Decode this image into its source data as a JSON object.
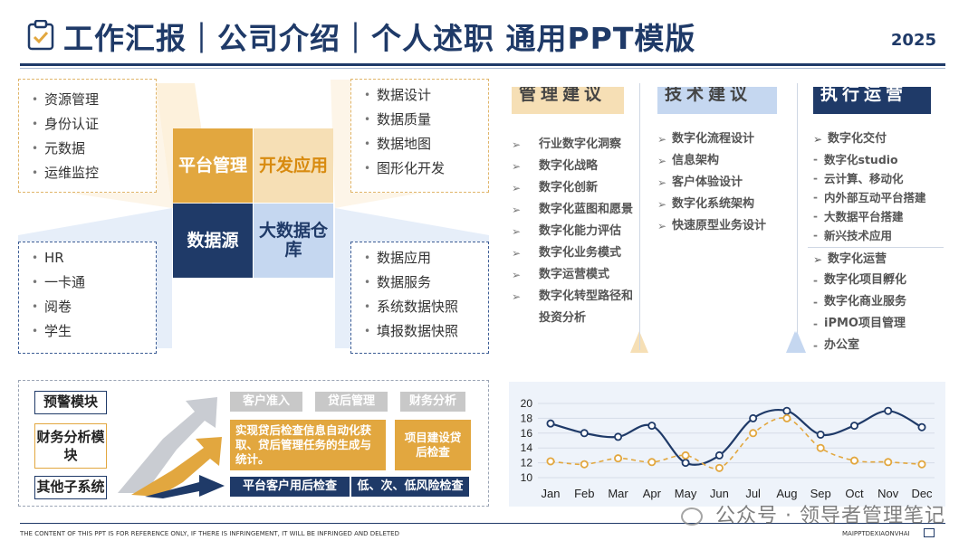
{
  "header": {
    "title": "工作汇报｜公司介绍｜个人述职 通用PPT模版",
    "year": "2025"
  },
  "left_diagram": {
    "top_left_list": [
      "资源管理",
      "身份认证",
      "元数据",
      "运维监控"
    ],
    "top_right_list": [
      "数据设计",
      "数据质量",
      "数据地图",
      "图形化开发"
    ],
    "bottom_left_list": [
      "HR",
      "一卡通",
      "阅卷",
      "学生"
    ],
    "bottom_right_list": [
      "数据应用",
      "数据服务",
      "系统数据快照",
      "填报数据快照"
    ],
    "quad_1": "平台管理",
    "quad_2": "开发应用",
    "quad_3": "数据源",
    "quad_4": "大数据仓库"
  },
  "right_columns": {
    "col1": {
      "title": "管理建议",
      "items": [
        "行业数字化洞察",
        "数字化战略",
        "数字化创新",
        "数字化蓝图和愿景",
        "数字化能力评估",
        "数字化业务模式",
        "数字运营模式",
        "数字化转型路径和投资分析"
      ]
    },
    "col2": {
      "title": "技术建议",
      "items": [
        "数字化流程设计",
        "信息架构",
        "客户体验设计",
        "数字化系统架构",
        "快速原型业务设计"
      ]
    },
    "col3": {
      "title": "执行运营",
      "group1_head": "数字化交付",
      "group1_items": [
        "数字化studio",
        "云计算、移动化",
        "内外部互动平台搭建",
        "大数据平台搭建",
        "新兴技术应用"
      ],
      "group2_head": "数字化运营",
      "group2_items": [
        "数字化项目孵化",
        "数字化商业服务",
        "iPMO项目管理",
        "办公室"
      ]
    }
  },
  "bottom_left": {
    "modules": [
      "预警模块",
      "财务分析模块",
      "其他子系统"
    ],
    "tags": [
      "客户准入",
      "贷后管理",
      "财务分析"
    ],
    "gold_box_1": "实现贷后检查信息自动化获取、贷后管理任务的生成与统计。",
    "gold_box_2": "项目建设贷后检查",
    "navy_box_1": "平台客户用后检查",
    "navy_box_2": "低、次、低风险检查"
  },
  "chart_data": {
    "type": "line",
    "categories": [
      "Jan",
      "Feb",
      "Mar",
      "Apr",
      "May",
      "Jun",
      "Jul",
      "Aug",
      "Sep",
      "Oct",
      "Nov",
      "Dec"
    ],
    "series": [
      {
        "values": [
          17.3,
          16.0,
          15.5,
          17.0,
          12.0,
          13.0,
          18.0,
          19.0,
          15.8,
          17.0,
          19.0,
          16.8
        ],
        "color": "#1f3a68",
        "style": "solid"
      },
      {
        "values": [
          12.2,
          11.8,
          12.6,
          12.1,
          13.0,
          11.3,
          16.0,
          18.0,
          14.0,
          12.3,
          12.1,
          11.8
        ],
        "color": "#e2a73f",
        "style": "dashed"
      }
    ],
    "yticks": [
      "20",
      "18",
      "16",
      "14",
      "12",
      "10"
    ],
    "ylim": [
      10,
      20
    ],
    "grid": "horizontal"
  },
  "footer": {
    "disclaimer": "THE CONTENT OF THIS PPT IS FOR REFERENCE ONLY, IF THERE IS INFRINGEMENT, IT WILL BE INFRINGED AND DELETED",
    "brand": "MAIPPTDEXIAONVHAI",
    "watermark": "公众号 · 领导者管理笔记"
  }
}
